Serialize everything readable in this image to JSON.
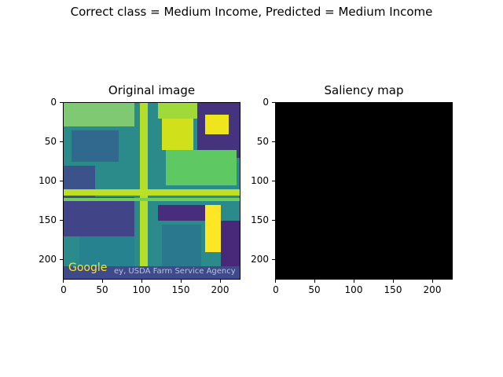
{
  "figure": {
    "suptitle": "Correct class = Medium Income, Predicted = Medium Income"
  },
  "panels": [
    {
      "title": "Original image",
      "colormap": "viridis",
      "watermark": {
        "logo": "Google",
        "credit": "ey, USDA Farm Service Agency"
      }
    },
    {
      "title": "Saliency map",
      "background": "#000000"
    }
  ],
  "axes": {
    "xticks": [
      "0",
      "50",
      "100",
      "150",
      "200"
    ],
    "yticks": [
      "0",
      "50",
      "100",
      "150",
      "200"
    ]
  }
}
